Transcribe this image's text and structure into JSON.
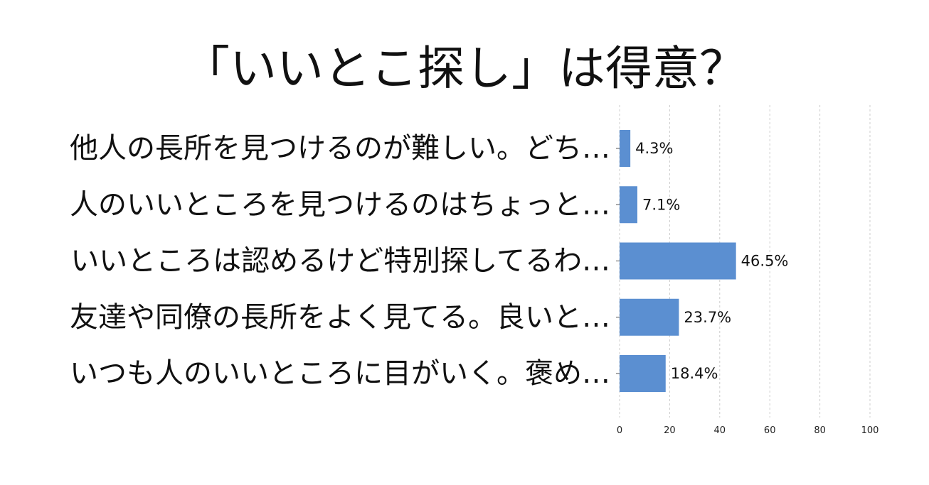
{
  "chart_data": {
    "type": "bar",
    "orientation": "horizontal",
    "title": "「いいとこ探し」は得意？",
    "categories": [
      "他人の長所を見つけるのが難しい。どち…",
      "人のいいところを見つけるのはちょっと…",
      "いいところは認めるけど特別探してるわ…",
      "友達や同僚の長所をよく見てる。良いと…",
      "いつも人のいいところに目がいく。褒め…"
    ],
    "values": [
      4.3,
      7.1,
      46.5,
      23.7,
      18.4
    ],
    "value_labels": [
      "4.3%",
      "7.1%",
      "46.5%",
      "23.7%",
      "18.4%"
    ],
    "xlim": [
      0,
      100
    ],
    "xticks": [
      0,
      20,
      40,
      60,
      80,
      100
    ],
    "xtick_labels": [
      "0",
      "20",
      "40",
      "60",
      "80",
      "100"
    ],
    "grid": true,
    "bar_color": "#5b8fd1"
  }
}
